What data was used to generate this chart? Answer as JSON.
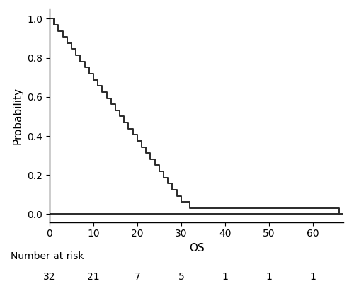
{
  "title": "",
  "xlabel": "OS",
  "ylabel": "Probability",
  "xlim": [
    0,
    67
  ],
  "ylim": [
    -0.04,
    1.05
  ],
  "xticks": [
    0,
    10,
    20,
    30,
    40,
    50,
    60
  ],
  "yticks": [
    0.0,
    0.2,
    0.4,
    0.6,
    0.8,
    1.0
  ],
  "line_color": "#2a2a2a",
  "line_width": 1.4,
  "background_color": "#ffffff",
  "risk_times": [
    0,
    10,
    20,
    30,
    40,
    50,
    60
  ],
  "risk_numbers": [
    "32",
    "21",
    "7",
    "5",
    "1",
    "1",
    "1"
  ],
  "risk_label": "Number at risk",
  "km_times": [
    0,
    1,
    2,
    3,
    4,
    5,
    6,
    7,
    8,
    9,
    10,
    11,
    12,
    13,
    14,
    15,
    16,
    17,
    18,
    19,
    20,
    21,
    22,
    23,
    24,
    25,
    26,
    27,
    28,
    29,
    30,
    31,
    32,
    34,
    35,
    36,
    66
  ],
  "km_surv": [
    1.0,
    0.96875,
    0.9375,
    0.90625,
    0.875,
    0.84375,
    0.8125,
    0.78125,
    0.75,
    0.71875,
    0.6875,
    0.65625,
    0.625,
    0.59375,
    0.5625,
    0.53125,
    0.5,
    0.46875,
    0.4375,
    0.40625,
    0.375,
    0.34375,
    0.3125,
    0.28125,
    0.25,
    0.21875,
    0.1875,
    0.15625,
    0.125,
    0.09375,
    0.0625,
    0.0625,
    0.03125,
    0.03125,
    0.03125,
    0.03125,
    0.0
  ]
}
